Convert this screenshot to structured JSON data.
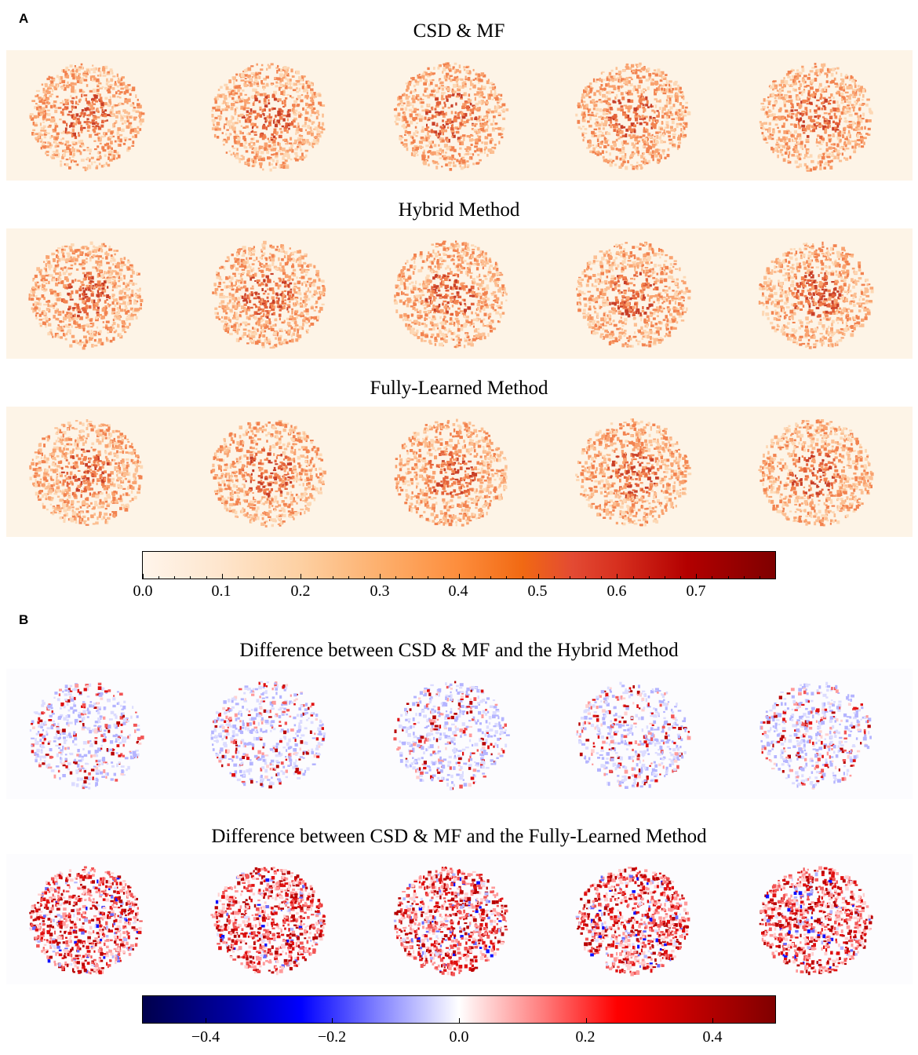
{
  "panel_a": {
    "label": "A",
    "rows": [
      {
        "title": "CSD & MF"
      },
      {
        "title": "Hybrid Method"
      },
      {
        "title": "Fully-Learned Method"
      }
    ],
    "colorbar": {
      "ticks": [
        "0.0",
        "0.1",
        "0.2",
        "0.3",
        "0.4",
        "0.5",
        "0.6",
        "0.7"
      ]
    }
  },
  "panel_b": {
    "label": "B",
    "rows": [
      {
        "title": "Difference between CSD & MF and the Hybrid Method"
      },
      {
        "title": "Difference between CSD & MF and the Fully-Learned Method"
      }
    ],
    "colorbar": {
      "ticks": [
        "−0.4",
        "−0.2",
        "0.0",
        "0.2",
        "0.4"
      ]
    }
  },
  "colors": {
    "warm_bg": "#fdf4e7",
    "diff_bg": "#fcfcfe",
    "blue": "#0000ff",
    "red": "#e00000"
  }
}
